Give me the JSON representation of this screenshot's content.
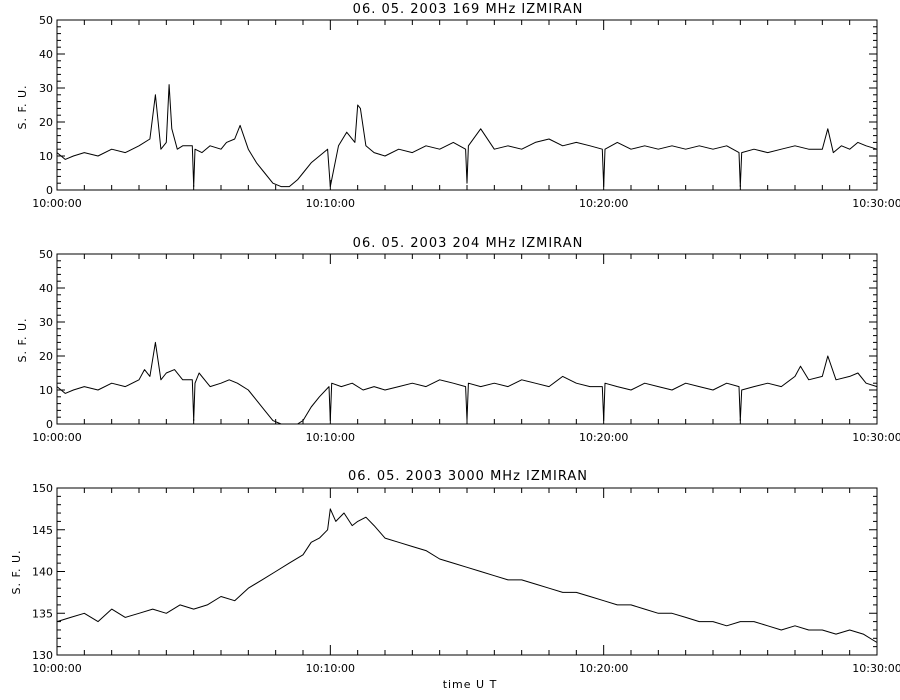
{
  "chart_data": [
    {
      "type": "line",
      "title": "06.  05.  2003    169  MHz    IZMIRAN",
      "ylabel": "S.  F.  U.",
      "xlabel": "",
      "ylim": [
        0,
        50
      ],
      "yticks": [
        "0",
        "10",
        "20",
        "30",
        "40",
        "50"
      ],
      "xlim": [
        "10:00:00",
        "10:30:00"
      ],
      "xticks": [
        "10:00:00",
        "10:10:00",
        "10:20:00",
        "10:30:00"
      ],
      "x_unit": "minutes after 10:00:00 UT",
      "series": [
        {
          "color": "#000000",
          "x": [
            0,
            0.3,
            0.6,
            1,
            1.5,
            2,
            2.5,
            3,
            3.4,
            3.6,
            3.8,
            4,
            4.1,
            4.2,
            4.4,
            4.6,
            4.95,
            5,
            5.05,
            5.3,
            5.6,
            6,
            6.2,
            6.5,
            6.7,
            7,
            7.3,
            7.6,
            7.9,
            8.2,
            8.5,
            8.8,
            9,
            9.3,
            9.6,
            9.9,
            10,
            10.3,
            10.6,
            10.9,
            11,
            11.1,
            11.3,
            11.6,
            12,
            12.5,
            13,
            13.5,
            14,
            14.5,
            14.95,
            15,
            15.05,
            15.5,
            16,
            16.5,
            17,
            17.5,
            18,
            18.5,
            19,
            19.5,
            19.95,
            20,
            20.05,
            20.5,
            21,
            21.5,
            22,
            22.5,
            23,
            23.5,
            24,
            24.5,
            24.95,
            25,
            25.05,
            25.5,
            26,
            26.5,
            27,
            27.5,
            28,
            28.2,
            28.4,
            28.7,
            29,
            29.3,
            29.6,
            30
          ],
          "values": [
            11,
            9,
            10,
            11,
            10,
            12,
            11,
            13,
            15,
            28,
            12,
            14,
            31,
            18,
            12,
            13,
            13,
            1,
            12,
            11,
            13,
            12,
            14,
            15,
            19,
            12,
            8,
            5,
            2,
            1,
            1,
            3,
            5,
            8,
            10,
            12,
            1,
            13,
            17,
            14,
            25,
            24,
            13,
            11,
            10,
            12,
            11,
            13,
            12,
            14,
            12,
            2,
            13,
            18,
            12,
            13,
            12,
            14,
            15,
            13,
            14,
            13,
            12,
            1,
            12,
            14,
            12,
            13,
            12,
            13,
            12,
            13,
            12,
            13,
            11,
            1,
            11,
            12,
            11,
            12,
            13,
            12,
            12,
            18,
            11,
            13,
            12,
            14,
            13,
            12
          ]
        }
      ]
    },
    {
      "type": "line",
      "title": "06.  05.  2003    204  MHz    IZMIRAN",
      "ylabel": "S.  F.  U.",
      "xlabel": "",
      "ylim": [
        0,
        50
      ],
      "yticks": [
        "0",
        "10",
        "20",
        "30",
        "40",
        "50"
      ],
      "xlim": [
        "10:00:00",
        "10:30:00"
      ],
      "xticks": [
        "10:00:00",
        "10:10:00",
        "10:20:00",
        "10:30:00"
      ],
      "x_unit": "minutes after 10:00:00 UT",
      "series": [
        {
          "color": "#000000",
          "x": [
            0,
            0.3,
            0.6,
            1,
            1.5,
            2,
            2.5,
            3,
            3.2,
            3.4,
            3.6,
            3.8,
            4,
            4.3,
            4.6,
            4.95,
            5,
            5.05,
            5.2,
            5.6,
            6,
            6.3,
            6.6,
            7,
            7.3,
            7.6,
            7.9,
            8.2,
            8.5,
            8.8,
            9,
            9.3,
            9.6,
            9.95,
            10,
            10.05,
            10.4,
            10.8,
            11.2,
            11.6,
            12,
            12.5,
            13,
            13.5,
            14,
            14.5,
            14.95,
            15,
            15.05,
            15.5,
            16,
            16.5,
            17,
            17.5,
            18,
            18.5,
            19,
            19.5,
            19.95,
            20,
            20.05,
            20.5,
            21,
            21.5,
            22,
            22.5,
            23,
            23.5,
            24,
            24.5,
            24.95,
            25,
            25.05,
            25.5,
            26,
            26.5,
            27,
            27.2,
            27.5,
            28,
            28.2,
            28.5,
            29,
            29.3,
            29.6,
            30
          ],
          "values": [
            11,
            9,
            10,
            11,
            10,
            12,
            11,
            13,
            16,
            14,
            24,
            13,
            15,
            16,
            13,
            13,
            1,
            12,
            15,
            11,
            12,
            13,
            12,
            10,
            7,
            4,
            1,
            0,
            0,
            0,
            1,
            5,
            8,
            11,
            1,
            12,
            11,
            12,
            10,
            11,
            10,
            11,
            12,
            11,
            13,
            12,
            11,
            1,
            12,
            11,
            12,
            11,
            13,
            12,
            11,
            14,
            12,
            11,
            11,
            1,
            12,
            11,
            10,
            12,
            11,
            10,
            12,
            11,
            10,
            12,
            11,
            1,
            10,
            11,
            12,
            11,
            14,
            17,
            13,
            14,
            20,
            13,
            14,
            15,
            12,
            11
          ]
        }
      ]
    },
    {
      "type": "line",
      "title": "06.  05.  2003    3000  MHz    IZMIRAN",
      "ylabel": "S.  F.  U.",
      "xlabel": "time   U T",
      "ylim": [
        130,
        150
      ],
      "yticks": [
        "130",
        "135",
        "140",
        "145",
        "150"
      ],
      "xlim": [
        "10:00:00",
        "10:30:00"
      ],
      "xticks": [
        "10:00:00",
        "10:10:00",
        "10:20:00",
        "10:30:00"
      ],
      "x_unit": "minutes after 10:00:00 UT",
      "series": [
        {
          "color": "#000000",
          "x": [
            0,
            0.5,
            1,
            1.5,
            2,
            2.5,
            3,
            3.5,
            4,
            4.5,
            5,
            5.5,
            6,
            6.5,
            7,
            7.5,
            8,
            8.5,
            9,
            9.3,
            9.6,
            9.9,
            10,
            10.2,
            10.5,
            10.8,
            11,
            11.3,
            11.6,
            12,
            12.5,
            13,
            13.5,
            14,
            14.5,
            15,
            15.5,
            16,
            16.5,
            17,
            17.5,
            18,
            18.5,
            19,
            19.5,
            20,
            20.5,
            21,
            21.5,
            22,
            22.5,
            23,
            23.5,
            24,
            24.5,
            25,
            25.5,
            26,
            26.5,
            27,
            27.5,
            28,
            28.5,
            29,
            29.5,
            30
          ],
          "values": [
            134,
            134.5,
            135,
            134,
            135.5,
            134.5,
            135,
            135.5,
            135,
            136,
            135.5,
            136,
            137,
            136.5,
            138,
            139,
            140,
            141,
            142,
            143.5,
            144,
            145,
            147.5,
            146,
            147,
            145.5,
            146,
            146.5,
            145.5,
            144,
            143.5,
            143,
            142.5,
            141.5,
            141,
            140.5,
            140,
            139.5,
            139,
            139,
            138.5,
            138,
            137.5,
            137.5,
            137,
            136.5,
            136,
            136,
            135.5,
            135,
            135,
            134.5,
            134,
            134,
            133.5,
            134,
            134,
            133.5,
            133,
            133.5,
            133,
            133,
            132.5,
            133,
            132.5,
            131.5
          ]
        }
      ]
    }
  ]
}
